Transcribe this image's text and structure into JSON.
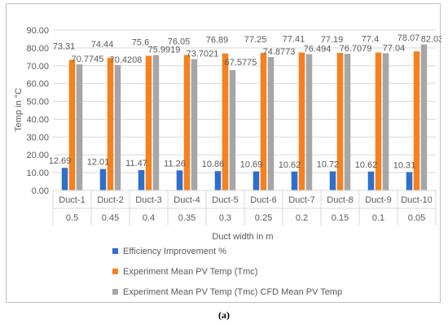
{
  "caption": "(a)",
  "colors": {
    "efficiency": "#2e6fcc",
    "experiment": "#f5811f",
    "cfd": "#a6a6a6",
    "grid": "#d9d9d9",
    "axis_text": "#595959"
  },
  "chart_data": {
    "type": "bar",
    "title": "",
    "xlabel": "Duct width in m",
    "ylabel": "Temp in  °C",
    "ylim": [
      0,
      90
    ],
    "yticks": [
      "0.00",
      "10.00",
      "20.00",
      "30.00",
      "40.00",
      "50.00",
      "60.00",
      "70.00",
      "80.00",
      "90.00"
    ],
    "grid": true,
    "legend_position": "bottom",
    "categories": [
      "Duct-1",
      "Duct-2",
      "Duct-3",
      "Duct-4",
      "Duct-5",
      "Duct-6",
      "Duct-7",
      "Duct-8",
      "Duct-9",
      "Duct-10"
    ],
    "categories_secondary": [
      "0.5",
      "0.45",
      "0.4",
      "0.35",
      "0.3",
      "0.25",
      "0.2",
      "0.15",
      "0.1",
      "0.05"
    ],
    "series": [
      {
        "name": "Efficiency Improvement %",
        "values": [
          12.69,
          12.01,
          11.47,
          11.26,
          10.86,
          10.69,
          10.62,
          10.72,
          10.62,
          10.31
        ],
        "labels": [
          "12.69",
          "12.01",
          "11.47",
          "11.26",
          "10.86",
          "10.69",
          "10.62",
          "10.72",
          "10.62",
          "10.31"
        ]
      },
      {
        "name": "Experiment Mean PV Temp (Tmc)",
        "values": [
          73.31,
          74.44,
          75.6,
          76.05,
          76.89,
          77.25,
          77.41,
          77.19,
          77.4,
          78.07
        ],
        "labels": [
          "73.31",
          "74.44",
          "75.6",
          "76.05",
          "76.89",
          "77.25",
          "77.41",
          "77.19",
          "77.4",
          "78.07"
        ]
      },
      {
        "name": "Experiment Mean PV Temp (Tmc) CFD Mean PV Temp",
        "values": [
          70.7745,
          70.4208,
          75.9919,
          73.7021,
          67.5775,
          74.8773,
          76.494,
          76.7079,
          77.04,
          82.03
        ],
        "labels": [
          "70.7745",
          "70.4208",
          "75.9919",
          "73.7021",
          "67.5775",
          "74.8773",
          "76.494",
          "76.7079",
          "77.04",
          "82.03"
        ]
      }
    ]
  }
}
